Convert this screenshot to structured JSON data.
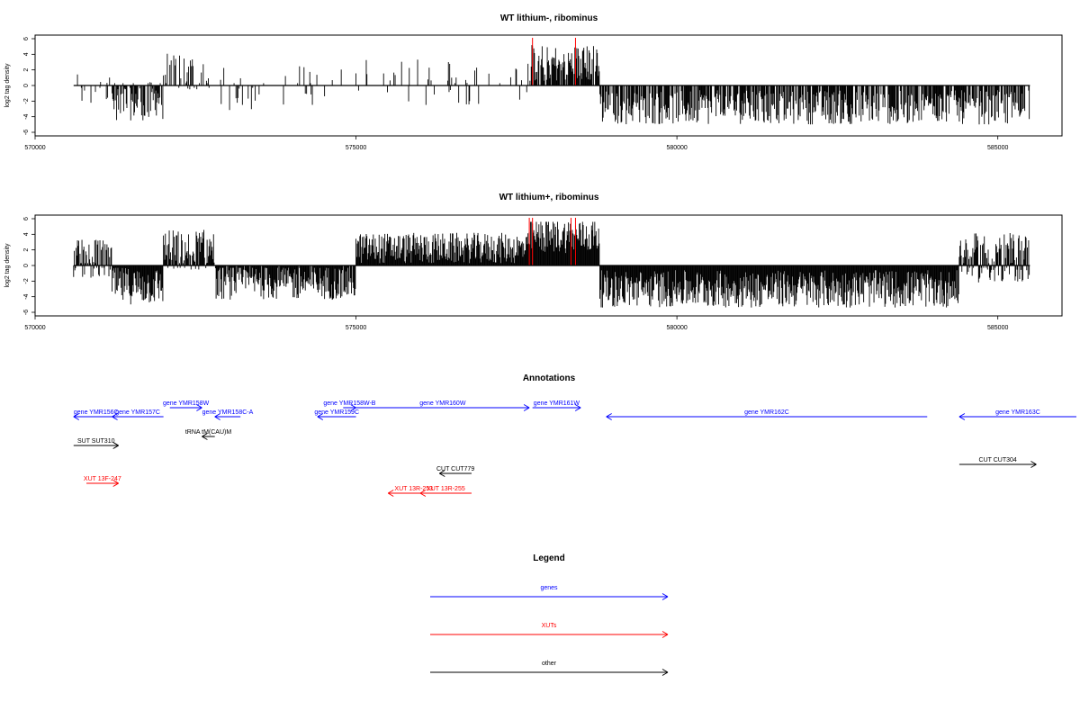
{
  "colors": {
    "gene": "#0000ff",
    "xut": "#ff0000",
    "other": "#000000",
    "marker": "#ff0000",
    "bars": "#000000"
  },
  "chart_data": [
    {
      "type": "bar",
      "title": "WT lithium-, ribominus",
      "ylabel": "log2 tag density",
      "xlim": [
        570000,
        586000
      ],
      "ylim": [
        -6,
        6
      ],
      "xticks": [
        570000,
        575000,
        580000,
        585000
      ],
      "yticks": [
        6,
        4,
        2,
        0,
        -2,
        -4,
        -6
      ],
      "red_markers": [
        577750,
        578420
      ],
      "baseline_range": [
        570600,
        585500
      ],
      "profile_note": "",
      "regions": [
        {
          "from": 570600,
          "to": 571200,
          "mean": -0.5,
          "amp": 2.5,
          "density": 0.25
        },
        {
          "from": 571200,
          "to": 572000,
          "mean": -2.0,
          "amp": 2.5,
          "density": 0.7
        },
        {
          "from": 572000,
          "to": 572800,
          "mean": 1.8,
          "amp": 2.5,
          "density": 0.5
        },
        {
          "from": 572800,
          "to": 574900,
          "mean": -0.3,
          "amp": 3.0,
          "density": 0.12
        },
        {
          "from": 574900,
          "to": 577700,
          "mean": 0.5,
          "amp": 3.0,
          "density": 0.14
        },
        {
          "from": 577700,
          "to": 578800,
          "mean": 2.8,
          "amp": 2.4,
          "density": 0.85
        },
        {
          "from": 578800,
          "to": 585500,
          "mean": -2.8,
          "amp": 2.2,
          "density": 0.75
        }
      ]
    },
    {
      "type": "bar",
      "title": "WT lithium+, ribominus",
      "ylabel": "log2 tag density",
      "xlim": [
        570000,
        586000
      ],
      "ylim": [
        -6,
        6
      ],
      "xticks": [
        570000,
        575000,
        580000,
        585000
      ],
      "yticks": [
        6,
        4,
        2,
        0,
        -2,
        -4,
        -6
      ],
      "red_markers": [
        577700,
        577750,
        578350,
        578420
      ],
      "baseline_range": [
        570600,
        585500
      ],
      "regions": [
        {
          "from": 570600,
          "to": 571200,
          "mean": 0.8,
          "amp": 2.6,
          "density": 0.9
        },
        {
          "from": 571200,
          "to": 572000,
          "mean": -2.6,
          "amp": 2.4,
          "density": 1.0
        },
        {
          "from": 572000,
          "to": 572800,
          "mean": 2.0,
          "amp": 2.6,
          "density": 0.95
        },
        {
          "from": 572800,
          "to": 575000,
          "mean": -2.2,
          "amp": 2.2,
          "density": 0.95
        },
        {
          "from": 575000,
          "to": 577700,
          "mean": 2.2,
          "amp": 2.0,
          "density": 1.0
        },
        {
          "from": 577700,
          "to": 578800,
          "mean": 3.8,
          "amp": 2.2,
          "density": 1.0
        },
        {
          "from": 578800,
          "to": 584400,
          "mean": -3.0,
          "amp": 2.4,
          "density": 1.0
        },
        {
          "from": 584400,
          "to": 585500,
          "mean": 1.0,
          "amp": 3.2,
          "density": 0.95
        }
      ]
    }
  ],
  "annotations": {
    "title": "Annotations",
    "xlim": [
      570000,
      586000
    ],
    "items": [
      {
        "label": "gene YMR156C",
        "kind": "gene",
        "start": 571300,
        "end": 570600,
        "row": 2
      },
      {
        "label": "gene YMR157C",
        "kind": "gene",
        "start": 572000,
        "end": 571200,
        "row": 2
      },
      {
        "label": "gene YMR158W",
        "kind": "gene",
        "start": 572100,
        "end": 572600,
        "row": 1
      },
      {
        "label": "gene YMR158C-A",
        "kind": "gene",
        "start": 573200,
        "end": 572800,
        "row": 2
      },
      {
        "label": "tRNA tM(CAU)M",
        "kind": "other",
        "start": 572800,
        "end": 572600,
        "row": 3
      },
      {
        "label": "gene YMR158W-B",
        "kind": "gene",
        "start": 574800,
        "end": 575000,
        "row": 1
      },
      {
        "label": "gene YMR159C",
        "kind": "gene",
        "start": 575000,
        "end": 574400,
        "row": 2
      },
      {
        "label": "gene YMR160W",
        "kind": "gene",
        "start": 575000,
        "end": 577700,
        "row": 1
      },
      {
        "label": "gene YMR161W",
        "kind": "gene",
        "start": 577750,
        "end": 578500,
        "row": 1
      },
      {
        "label": "gene YMR162C",
        "kind": "gene",
        "start": 583900,
        "end": 578900,
        "row": 2
      },
      {
        "label": "gene YMR163C",
        "kind": "gene",
        "start": 586300,
        "end": 584400,
        "row": 2
      },
      {
        "label": "SUT SUT310",
        "kind": "other",
        "start": 570600,
        "end": 571300,
        "row": 4
      },
      {
        "label": "CUT CUT779",
        "kind": "other",
        "start": 576800,
        "end": 576300,
        "row": 5
      },
      {
        "label": "CUT CUT304",
        "kind": "other",
        "start": 584400,
        "end": 585600,
        "row": 6
      },
      {
        "label": "XUT 13F-247",
        "kind": "xut",
        "start": 570800,
        "end": 571300,
        "row": 7
      },
      {
        "label": "XUT 13R-253",
        "kind": "xut",
        "start": 576300,
        "end": 575500,
        "row": 8
      },
      {
        "label": "XUT 13R-255",
        "kind": "xut",
        "start": 576800,
        "end": 576000,
        "row": 8
      }
    ]
  },
  "legend": {
    "title": "Legend",
    "items": [
      {
        "label": "genes",
        "kind": "gene"
      },
      {
        "label": "XUTs",
        "kind": "xut"
      },
      {
        "label": "other",
        "kind": "other"
      }
    ]
  }
}
